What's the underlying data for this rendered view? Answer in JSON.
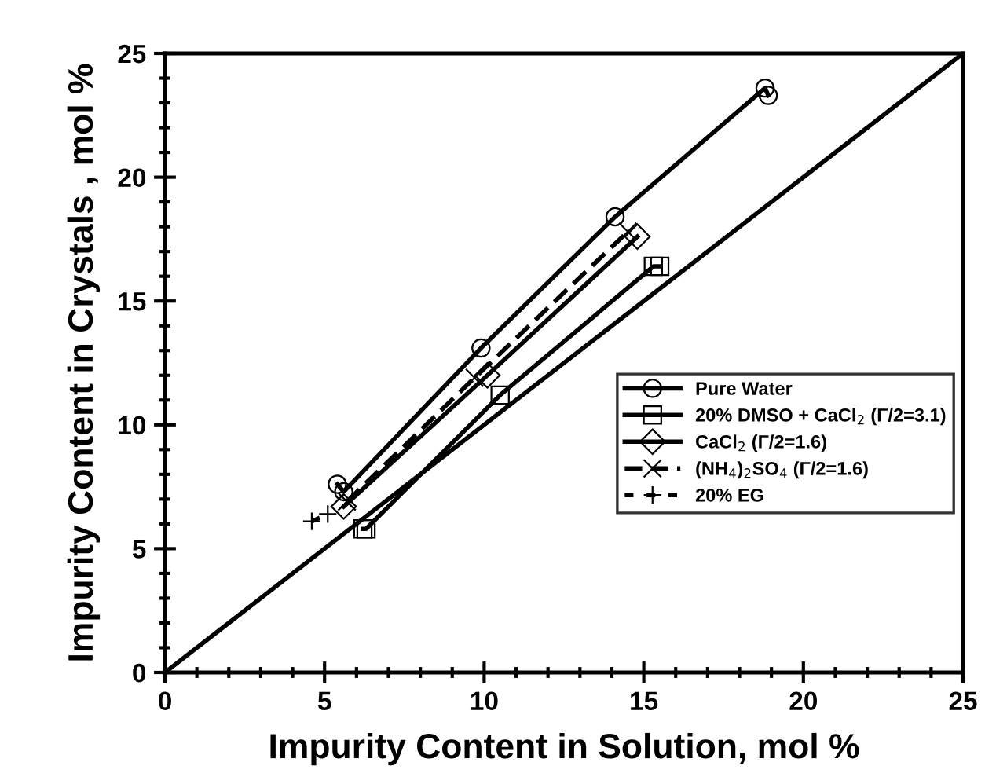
{
  "chart_data": {
    "type": "line",
    "xlabel": "Impurity Content in Solution, mol %",
    "ylabel": "Impurity Content in Crystals , mol %",
    "xlim": [
      0,
      25
    ],
    "ylim": [
      0,
      25
    ],
    "xticks": [
      0,
      5,
      10,
      15,
      20,
      25
    ],
    "yticks": [
      0,
      5,
      10,
      15,
      20,
      25
    ],
    "grid": false,
    "legend": "right",
    "series": [
      {
        "type": "line",
        "color": "#000000",
        "line_style": "solid",
        "x": [
          0,
          25
        ],
        "values": [
          0,
          25
        ]
      },
      {
        "name": "Pure Water",
        "color": "#000000",
        "line_style": "solid",
        "marker": "circle",
        "x": [
          5.4,
          5.6,
          9.9,
          14.1,
          18.8,
          18.9
        ],
        "values": [
          7.6,
          7.3,
          13.1,
          18.4,
          23.6,
          23.3
        ]
      },
      {
        "name": "20% DMSO + CaCl$_{2}$ (Γ/2=3.1)",
        "color": "#000000",
        "line_style": "solid",
        "marker": "square",
        "x": [
          6.2,
          6.3,
          10.5,
          15.3,
          15.5
        ],
        "values": [
          5.8,
          5.8,
          11.2,
          16.4,
          16.4
        ]
      },
      {
        "name": "CaCl$_{2}$ (Γ/2=1.6)",
        "color": "#000000",
        "line_style": "solid",
        "marker": "diamond",
        "x": [
          5.6,
          10.1,
          14.8
        ],
        "values": [
          6.7,
          12.0,
          17.6
        ]
      },
      {
        "name": "(NH$_{4}$)$_{2}$SO$_{4}$ (Γ/2=1.6)",
        "color": "#000000",
        "line_style": "dashed",
        "marker": "cross",
        "x": [
          5.7,
          9.7,
          14.5
        ],
        "values": [
          6.9,
          11.9,
          17.8
        ]
      },
      {
        "name": "20% EG",
        "color": "#000000",
        "line_style": "dotted",
        "marker": "plus",
        "x": [
          4.6,
          5.1
        ],
        "values": [
          6.1,
          6.4
        ]
      }
    ]
  }
}
